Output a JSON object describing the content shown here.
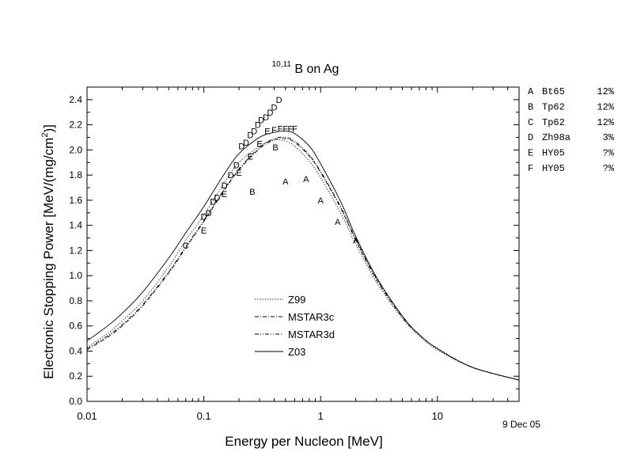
{
  "chart_data": {
    "type": "line",
    "title_super": "10,11",
    "title_main": "B on Ag",
    "xlabel": "Energy per Nucleon [MeV]",
    "ylabel": "Electronic Stopping Power [MeV/(mg/cm",
    "ylabel_sup": "2",
    "ylabel_end": ")]",
    "date_stamp": "9 Dec 05",
    "xscale": "log",
    "xlim": [
      0.01,
      50
    ],
    "ylim": [
      0.0,
      2.5
    ],
    "xticks": [
      0.01,
      0.1,
      1,
      10
    ],
    "xtick_labels": [
      "0.01",
      "0.1",
      "1",
      "10"
    ],
    "yticks": [
      0.0,
      0.2,
      0.4,
      0.6,
      0.8,
      1.0,
      1.2,
      1.4,
      1.6,
      1.8,
      2.0,
      2.2,
      2.4
    ],
    "ytick_labels": [
      "0.0",
      "0.2",
      "0.4",
      "0.6",
      "0.8",
      "1.0",
      "1.2",
      "1.4",
      "1.6",
      "1.8",
      "2.0",
      "2.2",
      "2.4"
    ],
    "grid": false,
    "legend_position": "lower-center",
    "series": [
      {
        "name": "Z99",
        "style": "dotted",
        "x": [
          0.01,
          0.015,
          0.02,
          0.03,
          0.05,
          0.07,
          0.1,
          0.15,
          0.2,
          0.3,
          0.4,
          0.5,
          0.6,
          0.8,
          1.0,
          1.5,
          2.0,
          3.0,
          5.0,
          7.0,
          10.0,
          20.0,
          50.0
        ],
        "y": [
          0.43,
          0.54,
          0.64,
          0.8,
          1.07,
          1.28,
          1.48,
          1.74,
          1.9,
          2.03,
          2.08,
          2.07,
          2.03,
          1.91,
          1.78,
          1.49,
          1.25,
          0.95,
          0.66,
          0.52,
          0.41,
          0.27,
          0.17
        ]
      },
      {
        "name": "MSTAR3c",
        "style": "dash-dot",
        "x": [
          0.01,
          0.015,
          0.02,
          0.03,
          0.05,
          0.07,
          0.1,
          0.15,
          0.2,
          0.3,
          0.4,
          0.5,
          0.6,
          0.8,
          1.0,
          1.5,
          2.0,
          3.0,
          5.0,
          7.0,
          10.0,
          20.0,
          50.0
        ],
        "y": [
          0.41,
          0.51,
          0.6,
          0.76,
          1.02,
          1.22,
          1.43,
          1.68,
          1.84,
          2.01,
          2.08,
          2.09,
          2.06,
          1.95,
          1.82,
          1.53,
          1.28,
          0.97,
          0.67,
          0.53,
          0.42,
          0.27,
          0.17
        ]
      },
      {
        "name": "MSTAR3d",
        "style": "dash-dot-dot",
        "x": [
          0.01,
          0.015,
          0.02,
          0.03,
          0.05,
          0.07,
          0.1,
          0.15,
          0.2,
          0.3,
          0.4,
          0.5,
          0.6,
          0.8,
          1.0,
          1.5,
          2.0,
          3.0,
          5.0,
          7.0,
          10.0,
          20.0,
          50.0
        ],
        "y": [
          0.42,
          0.52,
          0.61,
          0.77,
          1.03,
          1.23,
          1.44,
          1.69,
          1.85,
          2.02,
          2.09,
          2.1,
          2.07,
          1.96,
          1.83,
          1.54,
          1.29,
          0.98,
          0.68,
          0.53,
          0.42,
          0.27,
          0.17
        ]
      },
      {
        "name": "Z03",
        "style": "solid",
        "x": [
          0.01,
          0.015,
          0.02,
          0.03,
          0.05,
          0.07,
          0.1,
          0.15,
          0.2,
          0.3,
          0.4,
          0.5,
          0.6,
          0.8,
          1.0,
          1.5,
          2.0,
          3.0,
          5.0,
          7.0,
          10.0,
          20.0,
          50.0
        ],
        "y": [
          0.48,
          0.6,
          0.7,
          0.87,
          1.14,
          1.34,
          1.55,
          1.81,
          1.97,
          2.1,
          2.14,
          2.15,
          2.13,
          2.03,
          1.89,
          1.58,
          1.31,
          0.99,
          0.68,
          0.53,
          0.42,
          0.27,
          0.17
        ]
      }
    ],
    "data_points": [
      {
        "label": "A",
        "x": 0.5,
        "y": 1.75
      },
      {
        "label": "A",
        "x": 0.75,
        "y": 1.77
      },
      {
        "label": "A",
        "x": 1.0,
        "y": 1.6
      },
      {
        "label": "A",
        "x": 1.4,
        "y": 1.43
      },
      {
        "label": "A",
        "x": 2.0,
        "y": 1.28
      },
      {
        "label": "B",
        "x": 0.26,
        "y": 1.67
      },
      {
        "label": "B",
        "x": 0.41,
        "y": 2.02
      },
      {
        "label": "C",
        "x": 0.07,
        "y": 1.24
      },
      {
        "label": "D",
        "x": 0.1,
        "y": 1.47
      },
      {
        "label": "D",
        "x": 0.11,
        "y": 1.5
      },
      {
        "label": "D",
        "x": 0.12,
        "y": 1.59
      },
      {
        "label": "D",
        "x": 0.13,
        "y": 1.62
      },
      {
        "label": "D",
        "x": 0.15,
        "y": 1.72
      },
      {
        "label": "D",
        "x": 0.17,
        "y": 1.8
      },
      {
        "label": "D",
        "x": 0.19,
        "y": 1.88
      },
      {
        "label": "D",
        "x": 0.21,
        "y": 2.03
      },
      {
        "label": "D",
        "x": 0.23,
        "y": 2.06
      },
      {
        "label": "D",
        "x": 0.25,
        "y": 2.12
      },
      {
        "label": "D",
        "x": 0.27,
        "y": 2.15
      },
      {
        "label": "D",
        "x": 0.29,
        "y": 2.2
      },
      {
        "label": "D",
        "x": 0.31,
        "y": 2.24
      },
      {
        "label": "D",
        "x": 0.34,
        "y": 2.26
      },
      {
        "label": "D",
        "x": 0.37,
        "y": 2.3
      },
      {
        "label": "D",
        "x": 0.4,
        "y": 2.34
      },
      {
        "label": "D",
        "x": 0.44,
        "y": 2.4
      },
      {
        "label": "E",
        "x": 0.1,
        "y": 1.36
      },
      {
        "label": "E",
        "x": 0.15,
        "y": 1.65
      },
      {
        "label": "E",
        "x": 0.2,
        "y": 1.82
      },
      {
        "label": "E",
        "x": 0.25,
        "y": 1.95
      },
      {
        "label": "E",
        "x": 0.3,
        "y": 2.05
      },
      {
        "label": "E",
        "x": 0.35,
        "y": 2.15
      },
      {
        "label": "F",
        "x": 0.4,
        "y": 2.16
      },
      {
        "label": "F",
        "x": 0.45,
        "y": 2.17
      },
      {
        "label": "F",
        "x": 0.5,
        "y": 2.17
      },
      {
        "label": "F",
        "x": 0.55,
        "y": 2.17
      },
      {
        "label": "F",
        "x": 0.6,
        "y": 2.17
      }
    ],
    "reference_key": [
      {
        "code": "A",
        "ref": "Bt65",
        "err": "12%"
      },
      {
        "code": "B",
        "ref": "Tp62",
        "err": "12%"
      },
      {
        "code": "C",
        "ref": "Tp62",
        "err": "12%"
      },
      {
        "code": "D",
        "ref": "Zh98a",
        "err": "3%"
      },
      {
        "code": "E",
        "ref": "HY05",
        "err": "?%"
      },
      {
        "code": "F",
        "ref": "HY05",
        "err": "?%"
      }
    ]
  }
}
